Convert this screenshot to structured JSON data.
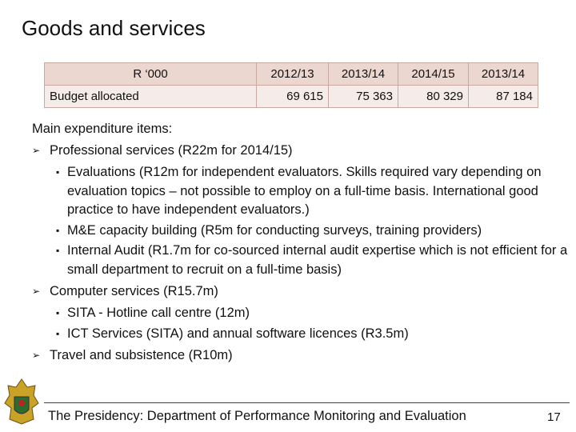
{
  "title": "Goods and services",
  "table": {
    "header": [
      "R ‘000",
      "2012/13",
      "2013/14",
      "2014/15",
      "2013/14"
    ],
    "rows": [
      [
        "Budget allocated",
        "69 615",
        "75 363",
        "80 329",
        "87 184"
      ]
    ]
  },
  "intro": "Main expenditure items:",
  "items": [
    {
      "text": "Professional services (R22m for 2014/15)",
      "subitems": [
        "Evaluations (R12m for independent evaluators. Skills required vary depending on evaluation topics – not possible to employ on a full-time basis. International good practice to have independent evaluators.)",
        "M&E capacity building (R5m for conducting surveys, training providers)",
        "Internal Audit (R1.7m for co-sourced internal audit expertise which is not efficient for a small department to recruit on a full-time basis)"
      ]
    },
    {
      "text": "Computer services (R15.7m)",
      "subitems": [
        "SITA - Hotline call centre (12m)",
        "ICT Services (SITA) and annual software licences (R3.5m)"
      ]
    },
    {
      "text": "Travel and subsistence (R10m)",
      "subitems": []
    }
  ],
  "footer": {
    "text": "The Presidency: Department of Performance Monitoring and Evaluation",
    "page": "17"
  }
}
